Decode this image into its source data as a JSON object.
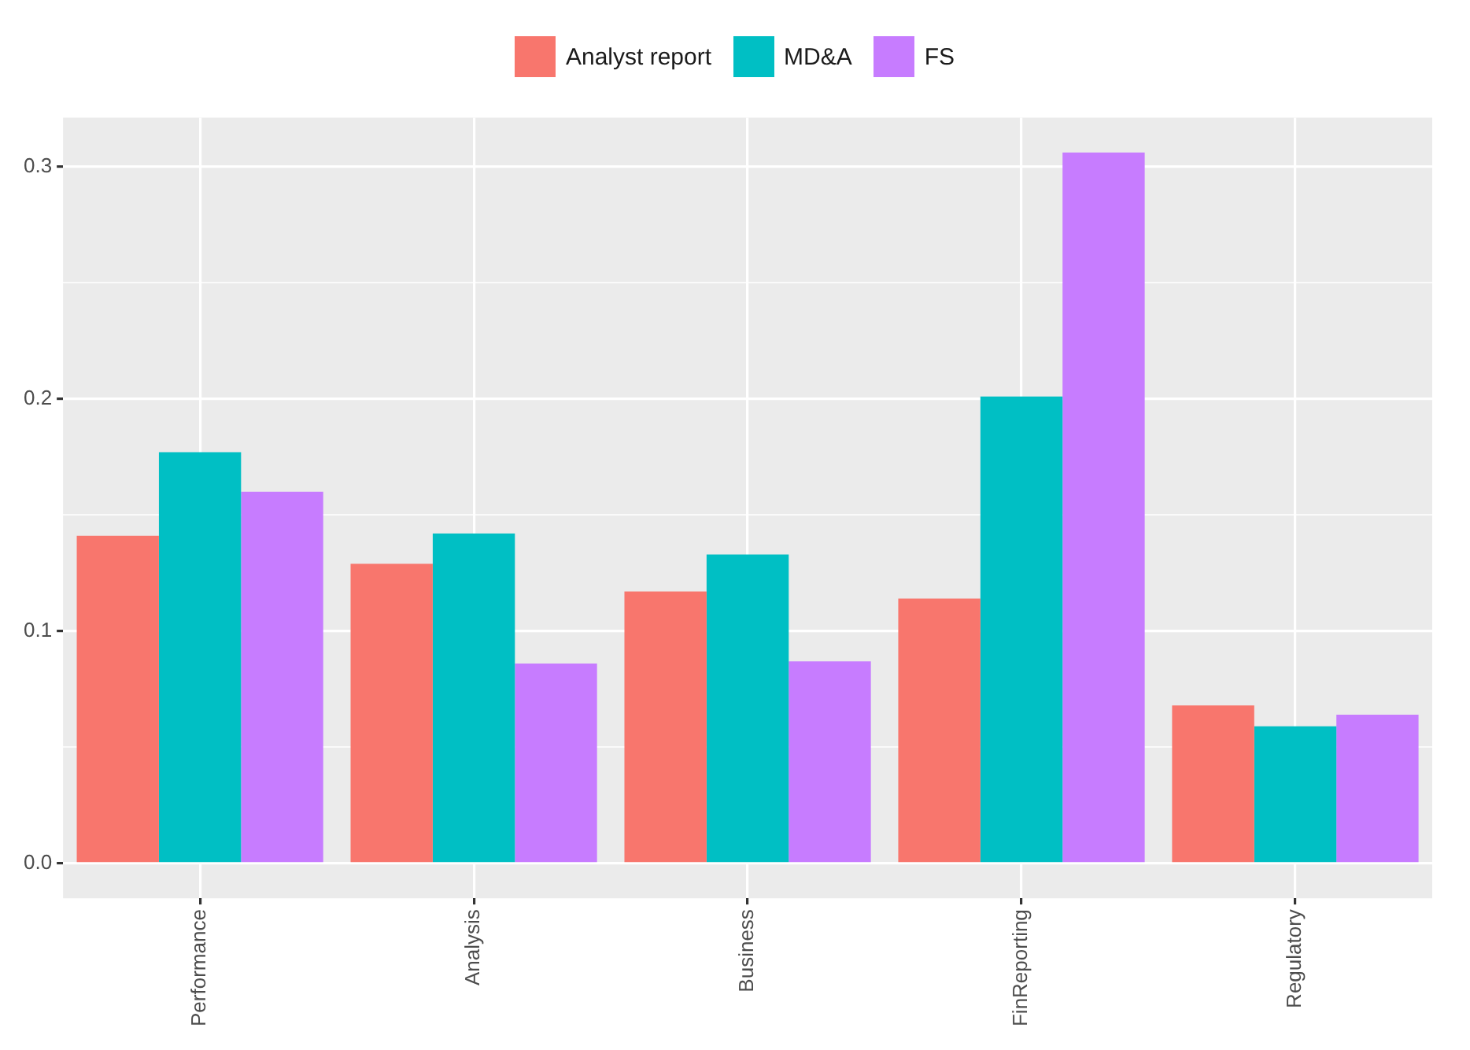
{
  "chart_data": {
    "type": "bar",
    "categories": [
      "Performance",
      "Analysis",
      "Business",
      "FinReporting",
      "Regulatory"
    ],
    "series": [
      {
        "name": "Analyst report",
        "color": "#f8766d",
        "values": [
          0.141,
          0.129,
          0.117,
          0.114,
          0.068
        ]
      },
      {
        "name": "MD&A",
        "color": "#00bfc4",
        "values": [
          0.177,
          0.142,
          0.133,
          0.201,
          0.059
        ]
      },
      {
        "name": "FS",
        "color": "#c77cff",
        "values": [
          0.16,
          0.086,
          0.087,
          0.306,
          0.064
        ]
      }
    ],
    "ylim": [
      -0.015,
      0.321
    ],
    "yticks": [
      {
        "value": 0.0,
        "label": "0.0"
      },
      {
        "value": 0.05,
        "label": null
      },
      {
        "value": 0.1,
        "label": "0.1"
      },
      {
        "value": 0.15,
        "label": null
      },
      {
        "value": 0.2,
        "label": "0.2"
      },
      {
        "value": 0.25,
        "label": null
      },
      {
        "value": 0.3,
        "label": "0.3"
      }
    ],
    "grid": true,
    "legend": "top"
  }
}
